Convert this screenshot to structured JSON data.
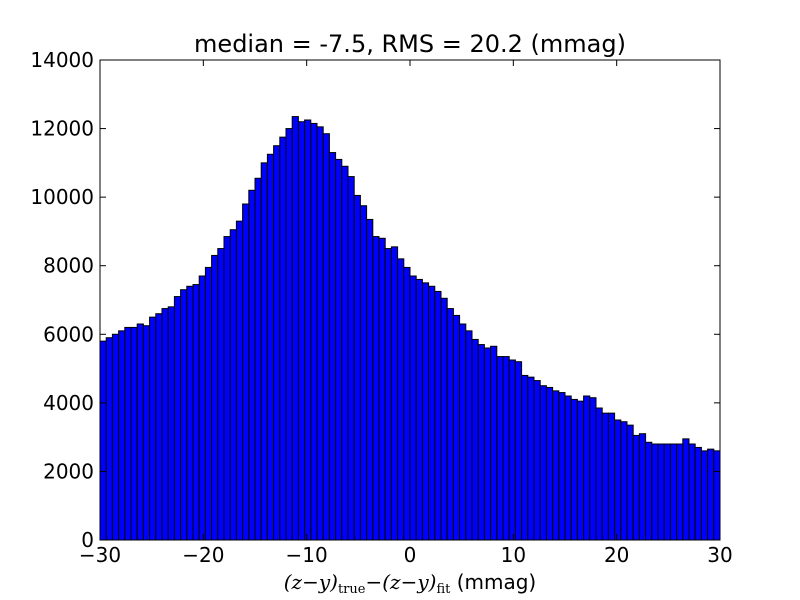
{
  "chart_data": {
    "type": "bar",
    "title": "median = -7.5, RMS = 20.2 (mmag)",
    "xlabel": {
      "parts": [
        "(z−y)",
        "true",
        "−(z−y)",
        "fit",
        " (mmag)"
      ]
    },
    "ylabel": "",
    "xlim": [
      -30,
      30
    ],
    "ylim": [
      0,
      14000
    ],
    "xticks": [
      -30,
      -20,
      -10,
      0,
      10,
      20,
      30
    ],
    "xtick_labels": [
      "−30",
      "−20",
      "−10",
      "0",
      "10",
      "20",
      "30"
    ],
    "yticks": [
      0,
      2000,
      4000,
      6000,
      8000,
      10000,
      12000,
      14000
    ],
    "ytick_labels": [
      "0",
      "2000",
      "4000",
      "6000",
      "8000",
      "10000",
      "12000",
      "14000"
    ],
    "bin_width": 0.6,
    "x_start": -30,
    "values": [
      5800,
      5900,
      6000,
      6100,
      6200,
      6200,
      6300,
      6250,
      6500,
      6600,
      6750,
      6800,
      7100,
      7300,
      7400,
      7450,
      7700,
      7950,
      8300,
      8500,
      8850,
      9050,
      9300,
      9800,
      10200,
      10550,
      11000,
      11250,
      11500,
      11750,
      12000,
      12350,
      12200,
      12250,
      12150,
      12050,
      11850,
      11300,
      11100,
      10900,
      10600,
      10050,
      9750,
      9350,
      8850,
      8800,
      8500,
      8550,
      8200,
      7950,
      7700,
      7600,
      7500,
      7400,
      7250,
      7050,
      6750,
      6550,
      6300,
      6100,
      5850,
      5700,
      5600,
      5650,
      5350,
      5350,
      5250,
      5200,
      4800,
      4750,
      4650,
      4500,
      4450,
      4350,
      4300,
      4200,
      4100,
      4050,
      4200,
      4150,
      3850,
      3700,
      3700,
      3500,
      3450,
      3350,
      3050,
      3100,
      2850,
      2800,
      2800,
      2800,
      2800,
      2800,
      2950,
      2800,
      2700,
      2600,
      2650,
      2600
    ],
    "bar_color": "#0000ff",
    "edge_color": "#000000",
    "grid": false,
    "legend": "none"
  }
}
